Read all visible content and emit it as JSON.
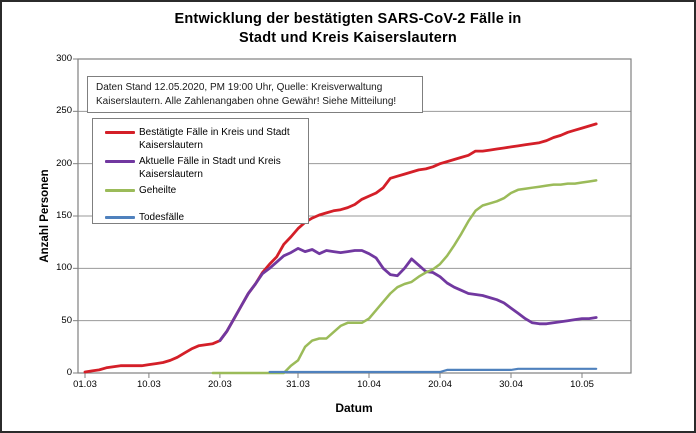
{
  "title": {
    "line1": "Entwicklung der bestätigten SARS-CoV-2 Fälle in",
    "line2": "Stadt und Kreis Kaiserslautern"
  },
  "info_box": {
    "line1": "Daten Stand 12.05.2020, PM 19:00 Uhr, Quelle: Kreisverwaltung",
    "line2": "Kaiserslautern. Alle Zahlenangaben ohne Gewähr! Siehe Mitteilung!"
  },
  "axes": {
    "y_title": "Anzahl Personen",
    "x_title": "Datum",
    "y_ticks": [
      0,
      50,
      100,
      150,
      200,
      250,
      300
    ],
    "x_tick_labels": [
      "01.03",
      "10.03",
      "20.03",
      "31.03",
      "10.04",
      "20.04",
      "30.04",
      "10.05"
    ],
    "x_tick_day_indices": [
      0,
      9,
      19,
      30,
      40,
      50,
      60,
      70
    ]
  },
  "colors": {
    "grid": "#9a9a9a",
    "plot_border": "#808080",
    "confirmed": "#d41f28",
    "active": "#7138a0",
    "recovered": "#9bbb59",
    "deaths": "#4f81bd"
  },
  "chart_data": {
    "type": "line",
    "title": "Entwicklung der bestätigten SARS-CoV-2 Fälle in Stadt und Kreis Kaiserslautern",
    "xlabel": "Datum",
    "ylabel": "Anzahl Personen",
    "ylim": [
      0,
      300
    ],
    "grid": true,
    "legend_position": "upper-left-inside",
    "x": [
      "01.03",
      "02.03",
      "03.03",
      "04.03",
      "05.03",
      "06.03",
      "07.03",
      "08.03",
      "09.03",
      "10.03",
      "11.03",
      "12.03",
      "13.03",
      "14.03",
      "15.03",
      "16.03",
      "17.03",
      "18.03",
      "19.03",
      "20.03",
      "21.03",
      "22.03",
      "23.03",
      "24.03",
      "25.03",
      "26.03",
      "27.03",
      "28.03",
      "29.03",
      "30.03",
      "31.03",
      "01.04",
      "02.04",
      "03.04",
      "04.04",
      "05.04",
      "06.04",
      "07.04",
      "08.04",
      "09.04",
      "10.04",
      "11.04",
      "12.04",
      "13.04",
      "14.04",
      "15.04",
      "16.04",
      "17.04",
      "18.04",
      "19.04",
      "20.04",
      "21.04",
      "22.04",
      "23.04",
      "24.04",
      "25.04",
      "26.04",
      "27.04",
      "28.04",
      "29.04",
      "30.04",
      "01.05",
      "02.05",
      "03.05",
      "04.05",
      "05.05",
      "06.05",
      "07.05",
      "08.05",
      "09.05",
      "10.05",
      "11.05",
      "12.05"
    ],
    "series": [
      {
        "name": "Bestätigte Fälle in Kreis und Stadt Kaiserslautern",
        "color_key": "confirmed",
        "values": [
          1,
          2,
          3,
          5,
          6,
          7,
          7,
          7,
          7,
          8,
          9,
          10,
          12,
          15,
          19,
          23,
          26,
          27,
          28,
          31,
          40,
          52,
          64,
          76,
          85,
          96,
          104,
          111,
          123,
          130,
          138,
          144,
          148,
          151,
          153,
          155,
          156,
          158,
          161,
          166,
          169,
          172,
          177,
          186,
          188,
          190,
          192,
          194,
          195,
          197,
          200,
          202,
          204,
          206,
          208,
          212,
          212,
          213,
          214,
          215,
          216,
          217,
          218,
          219,
          220,
          222,
          225,
          227,
          230,
          232,
          234,
          236,
          238
        ]
      },
      {
        "name": "Aktuelle Fälle in Stadt und Kreis Kaiserslautern",
        "color_key": "active",
        "values": [
          null,
          null,
          null,
          null,
          null,
          null,
          null,
          null,
          null,
          null,
          null,
          null,
          null,
          null,
          null,
          null,
          null,
          null,
          null,
          31,
          40,
          52,
          64,
          76,
          85,
          95,
          100,
          106,
          112,
          115,
          119,
          116,
          118,
          114,
          117,
          116,
          115,
          116,
          117,
          117,
          114,
          110,
          100,
          94,
          93,
          100,
          109,
          103,
          97,
          96,
          92,
          86,
          82,
          79,
          76,
          75,
          74,
          72,
          70,
          67,
          62,
          57,
          52,
          48,
          47,
          47,
          48,
          49,
          50,
          51,
          52,
          52,
          53
        ]
      },
      {
        "name": "Geheilte",
        "color_key": "recovered",
        "values": [
          null,
          null,
          null,
          null,
          null,
          null,
          null,
          null,
          null,
          null,
          null,
          null,
          null,
          null,
          null,
          null,
          null,
          null,
          0,
          0,
          0,
          0,
          0,
          0,
          0,
          0,
          0,
          0,
          0,
          7,
          12,
          25,
          31,
          33,
          33,
          39,
          45,
          48,
          48,
          48,
          52,
          60,
          68,
          76,
          82,
          85,
          87,
          92,
          96,
          99,
          104,
          112,
          122,
          133,
          145,
          155,
          160,
          162,
          164,
          167,
          172,
          175,
          176,
          177,
          178,
          179,
          180,
          180,
          181,
          181,
          182,
          183,
          184
        ]
      },
      {
        "name": "Todesfälle",
        "color_key": "deaths",
        "values": [
          null,
          null,
          null,
          null,
          null,
          null,
          null,
          null,
          null,
          null,
          null,
          null,
          null,
          null,
          null,
          null,
          null,
          null,
          null,
          null,
          null,
          null,
          null,
          null,
          null,
          null,
          1,
          1,
          1,
          1,
          1,
          1,
          1,
          1,
          1,
          1,
          1,
          1,
          1,
          1,
          1,
          1,
          1,
          1,
          1,
          1,
          1,
          1,
          1,
          1,
          1,
          3,
          3,
          3,
          3,
          3,
          3,
          3,
          3,
          3,
          3,
          4,
          4,
          4,
          4,
          4,
          4,
          4,
          4,
          4,
          4,
          4,
          4
        ]
      }
    ]
  }
}
